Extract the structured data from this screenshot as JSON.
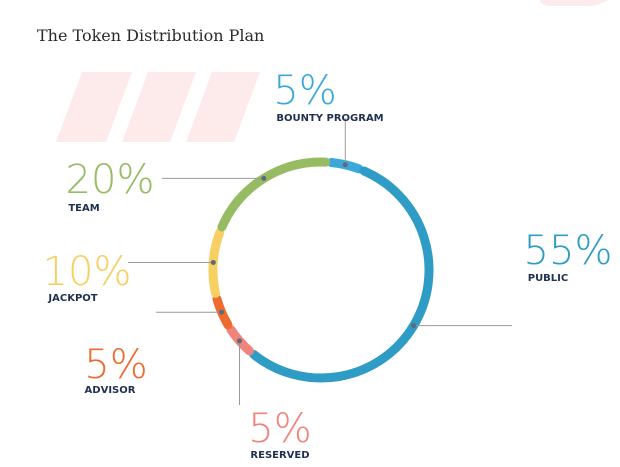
{
  "page": {
    "title": "The Token Distribution Plan"
  },
  "chart_data": {
    "type": "pie",
    "style": "donut-ring",
    "title": "",
    "slices": [
      {
        "label": "BOUNTY PROGRAM",
        "value": 5,
        "display": "5%",
        "color": "#3aa9da"
      },
      {
        "label": "PUBLIC",
        "value": 55,
        "display": "55%",
        "color": "#2e9cc4"
      },
      {
        "label": "RESERVED",
        "value": 5,
        "display": "5%",
        "color": "#f0837c"
      },
      {
        "label": "ADVISOR",
        "value": 5,
        "display": "5%",
        "color": "#ef6a2e"
      },
      {
        "label": "JACKPOT",
        "value": 10,
        "display": "10%",
        "color": "#f7cf63"
      },
      {
        "label": "TEAM",
        "value": 20,
        "display": "20%",
        "color": "#96bb62"
      }
    ],
    "legend": "none"
  }
}
